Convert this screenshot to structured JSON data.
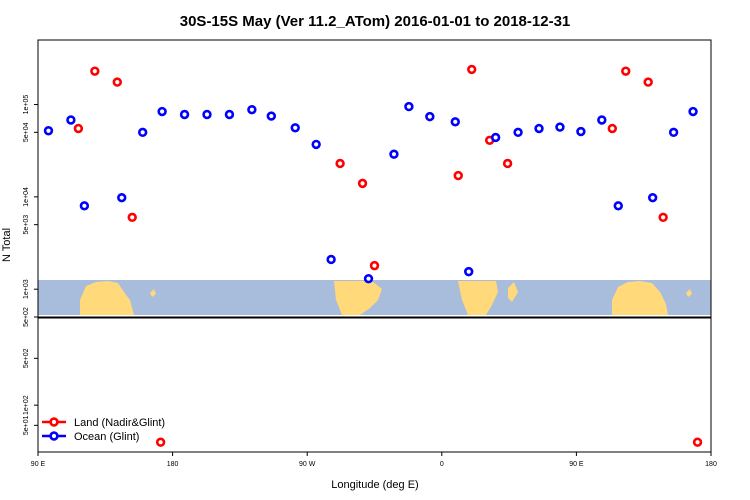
{
  "chart_data": {
    "type": "scatter",
    "title": "30S-15S May (Ver 11.2_ATom)   2016-01-01 to 2018-12-31",
    "xlabel": "Longitude (deg E)",
    "ylabel": "N Total",
    "xlim": [
      90,
      450
    ],
    "x_ticks": [
      {
        "value": 90,
        "label": "90 E"
      },
      {
        "value": 180,
        "label": "180"
      },
      {
        "value": 270,
        "label": "90 W"
      },
      {
        "value": 360,
        "label": "0"
      },
      {
        "value": 450,
        "label": "90 E"
      },
      {
        "value": 540,
        "label": "180"
      }
    ],
    "xlim_display": [
      90,
      540
    ],
    "y_scale": "log",
    "upper_panel": {
      "ylim": [
        500,
        500000
      ],
      "y_ticks": [
        {
          "value": 500,
          "label": "5e+02"
        },
        {
          "value": 1000,
          "label": "1e+03"
        },
        {
          "value": 5000,
          "label": "5e+03"
        },
        {
          "value": 10000,
          "label": "1e+04"
        },
        {
          "value": 50000,
          "label": "5e+04"
        },
        {
          "value": 100000,
          "label": "1e+05"
        }
      ]
    },
    "lower_panel": {
      "ylim": [
        20,
        2000
      ],
      "y_ticks": [
        {
          "value": 50,
          "label": "5e+01"
        },
        {
          "value": 100,
          "label": "1e+02"
        },
        {
          "value": 500,
          "label": "5e+02"
        }
      ]
    },
    "series": [
      {
        "name": "Land (Nadir&Glint)",
        "color": "#ff0000",
        "panel_upper": [
          {
            "x": 117,
            "y": 55000
          },
          {
            "x": 128,
            "y": 230000
          },
          {
            "x": 143,
            "y": 175000
          },
          {
            "x": 153,
            "y": 6000
          },
          {
            "x": 292,
            "y": 23000
          },
          {
            "x": 307,
            "y": 14000
          },
          {
            "x": 315,
            "y": 1800
          },
          {
            "x": 371,
            "y": 17000
          },
          {
            "x": 380,
            "y": 240000
          },
          {
            "x": 392,
            "y": 41000
          },
          {
            "x": 404,
            "y": 23000
          },
          {
            "x": 474,
            "y": 55000
          },
          {
            "x": 483,
            "y": 230000
          },
          {
            "x": 498,
            "y": 175000
          },
          {
            "x": 508,
            "y": 6000
          }
        ],
        "panel_lower": [
          {
            "x": 172,
            "y": 28
          },
          {
            "x": 531,
            "y": 28
          }
        ]
      },
      {
        "name": "Ocean (Glint)",
        "color": "#0000ff",
        "panel_upper": [
          {
            "x": 97,
            "y": 52000
          },
          {
            "x": 112,
            "y": 68000
          },
          {
            "x": 121,
            "y": 8000
          },
          {
            "x": 146,
            "y": 9800
          },
          {
            "x": 160,
            "y": 50000
          },
          {
            "x": 173,
            "y": 84000
          },
          {
            "x": 188,
            "y": 78000
          },
          {
            "x": 203,
            "y": 78000
          },
          {
            "x": 218,
            "y": 78000
          },
          {
            "x": 233,
            "y": 88000
          },
          {
            "x": 246,
            "y": 75000
          },
          {
            "x": 262,
            "y": 56000
          },
          {
            "x": 276,
            "y": 37000
          },
          {
            "x": 286,
            "y": 2100
          },
          {
            "x": 311,
            "y": 1300
          },
          {
            "x": 328,
            "y": 29000
          },
          {
            "x": 338,
            "y": 95000
          },
          {
            "x": 352,
            "y": 74000
          },
          {
            "x": 369,
            "y": 65000
          },
          {
            "x": 378,
            "y": 1550
          },
          {
            "x": 396,
            "y": 44000
          },
          {
            "x": 411,
            "y": 50000
          },
          {
            "x": 425,
            "y": 55000
          },
          {
            "x": 439,
            "y": 57000
          },
          {
            "x": 453,
            "y": 51000
          },
          {
            "x": 467,
            "y": 68000
          },
          {
            "x": 478,
            "y": 8000
          },
          {
            "x": 501,
            "y": 9800
          },
          {
            "x": 515,
            "y": 50000
          },
          {
            "x": 528,
            "y": 84000
          }
        ],
        "panel_lower": []
      }
    ],
    "legend": {
      "placement": "bottom-left"
    },
    "grid": false,
    "background_map": {
      "ocean_color": "#a8bcdc",
      "land_color": "#ffd97a"
    }
  }
}
